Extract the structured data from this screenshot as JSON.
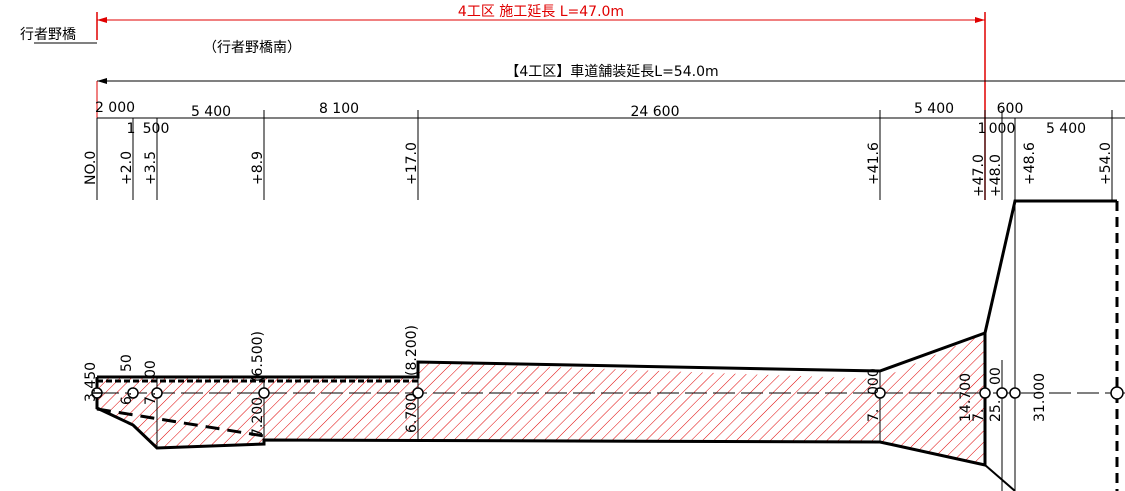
{
  "title": {
    "section_length": "4工区 施工延長 L=47.0m"
  },
  "bridge": {
    "name": "行者野橋",
    "south": "（行者野橋南）"
  },
  "pavement": {
    "label": "【4工区】車道舗装延長L=54.0m"
  },
  "top_dims": [
    "2 000",
    "5 400",
    "8 100",
    "24 600",
    "5 400",
    "600"
  ],
  "sub_dims": [
    "1",
    "500",
    "1",
    "000",
    "5 400"
  ],
  "stations": [
    "NO.0",
    "+2.0",
    "+3.5",
    "+8.9",
    "+17.0",
    "+41.6",
    "+47.0",
    "+48.0",
    "+48.6",
    "+54.0"
  ],
  "widths": [
    "3.450",
    "6.",
    "50",
    "7.",
    "00",
    "7.200",
    "(6.500)",
    "6.700",
    "(8.200)",
    "7.",
    "000",
    "7.",
    "14.700",
    "25.",
    "00",
    "31.000"
  ],
  "colors": {
    "hatch": "#e00000",
    "outline": "#000000",
    "dim_red": "#e00000"
  }
}
